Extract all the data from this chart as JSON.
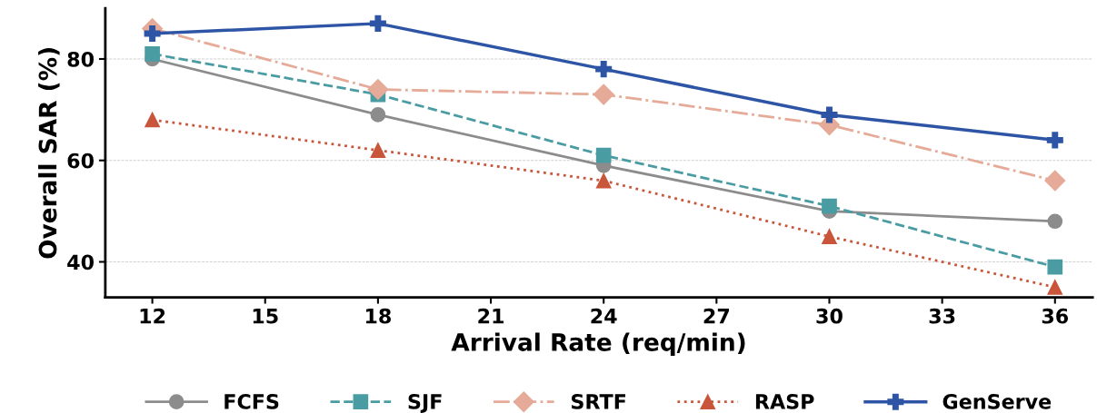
{
  "chart_data": {
    "type": "line",
    "xlabel": "Arrival Rate (req/min)",
    "ylabel": "Overall SAR (%)",
    "x": [
      12,
      18,
      24,
      30,
      36
    ],
    "xlim": [
      10.75,
      37
    ],
    "xticks": [
      12,
      15,
      18,
      21,
      24,
      27,
      30,
      33,
      36
    ],
    "ylim": [
      33,
      90
    ],
    "yticks": [
      40,
      60,
      80
    ],
    "grid": "y",
    "legend": "bottom",
    "series": [
      {
        "name": "FCFS",
        "color": "#8c8c8c",
        "marker": "circle",
        "line_style": "solid",
        "values": [
          80,
          69,
          59,
          50,
          48
        ]
      },
      {
        "name": "SJF",
        "color": "#4a9ca3",
        "marker": "square",
        "line_style": "dashed",
        "values": [
          81,
          73,
          61,
          51,
          39
        ]
      },
      {
        "name": "SRTF",
        "color": "#e6aa98",
        "marker": "diamond",
        "line_style": "dashdot",
        "values": [
          86,
          74,
          73,
          67,
          56
        ]
      },
      {
        "name": "RASP",
        "color": "#c9553a",
        "marker": "triangle",
        "line_style": "dotted",
        "values": [
          68,
          62,
          56,
          45,
          35
        ]
      },
      {
        "name": "GenServe",
        "color": "#2e55a5",
        "marker": "cross",
        "line_style": "solid",
        "values": [
          85,
          87,
          78,
          69,
          64
        ]
      }
    ]
  }
}
